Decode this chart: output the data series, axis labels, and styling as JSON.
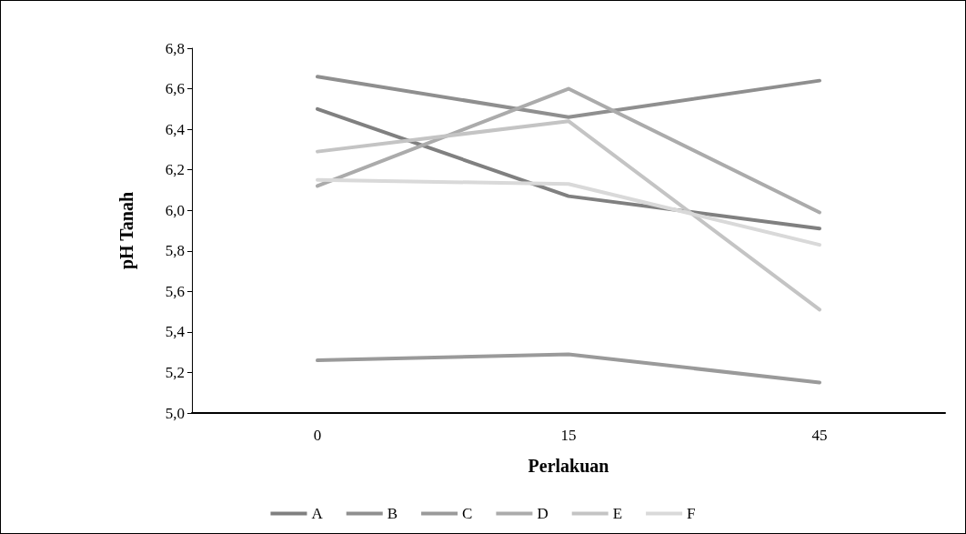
{
  "chart_data": {
    "type": "line",
    "xlabel": "Perlakuan",
    "ylabel": "pH Tanah",
    "categories": [
      "0",
      "15",
      "45"
    ],
    "series": [
      {
        "name": "A",
        "color": "#808080",
        "values": [
          6.5,
          6.07,
          5.91
        ]
      },
      {
        "name": "B",
        "color": "#8f8f8f",
        "values": [
          6.66,
          6.46,
          6.64
        ]
      },
      {
        "name": "C",
        "color": "#9a9a9a",
        "values": [
          5.26,
          5.29,
          5.15
        ]
      },
      {
        "name": "D",
        "color": "#ababab",
        "values": [
          6.12,
          6.6,
          5.99
        ]
      },
      {
        "name": "E",
        "color": "#c4c4c4",
        "values": [
          6.29,
          6.44,
          5.51
        ]
      },
      {
        "name": "F",
        "color": "#d9d9d9",
        "values": [
          6.15,
          6.13,
          5.83
        ]
      }
    ],
    "ylim": [
      5.0,
      6.8
    ],
    "yticks": [
      {
        "value": 5.0,
        "label": "5,0"
      },
      {
        "value": 5.2,
        "label": "5,2"
      },
      {
        "value": 5.4,
        "label": "5,4"
      },
      {
        "value": 5.6,
        "label": "5,6"
      },
      {
        "value": 5.8,
        "label": "5,8"
      },
      {
        "value": 6.0,
        "label": "6,0"
      },
      {
        "value": 6.2,
        "label": "6,2"
      },
      {
        "value": 6.4,
        "label": "6,4"
      },
      {
        "value": 6.6,
        "label": "6,6"
      },
      {
        "value": 6.8,
        "label": "6,8"
      }
    ],
    "grid": false,
    "legend": "bottom",
    "marker": "none",
    "line_style": "solid"
  }
}
